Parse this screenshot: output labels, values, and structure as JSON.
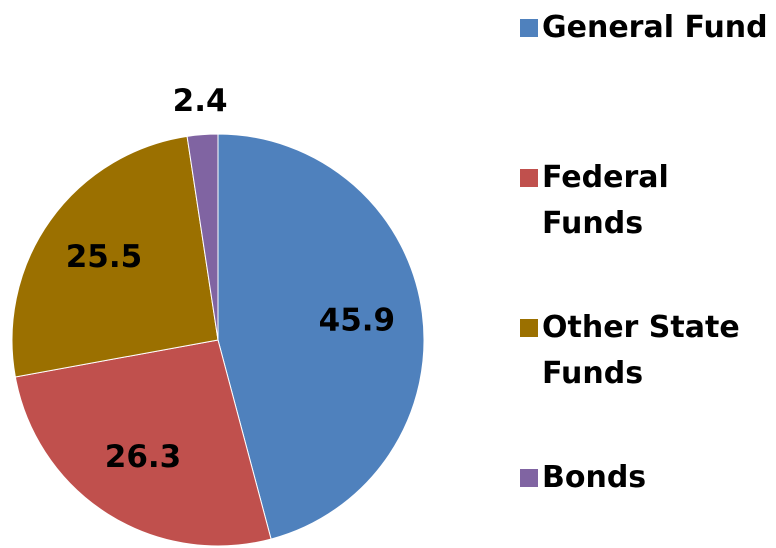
{
  "chart_data": {
    "type": "pie",
    "categories": [
      "General Fund",
      "Federal Funds",
      "Other State Funds",
      "Bonds"
    ],
    "values": [
      45.9,
      26.3,
      25.5,
      2.4
    ],
    "colors": [
      "#4f81bd",
      "#c0504d",
      "#9b7000",
      "#8064a2"
    ],
    "legend": "right"
  }
}
